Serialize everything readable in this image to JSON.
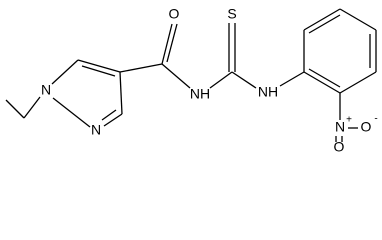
{
  "atoms": [
    {
      "label": "O"
    },
    {
      "label": "S"
    },
    {
      "label": "N"
    },
    {
      "label": "N"
    },
    {
      "label": "NH"
    },
    {
      "label": "NH"
    },
    {
      "label": "N",
      "charge": "+"
    },
    {
      "label": "O",
      "charge": "-"
    },
    {
      "label": "O"
    }
  ]
}
